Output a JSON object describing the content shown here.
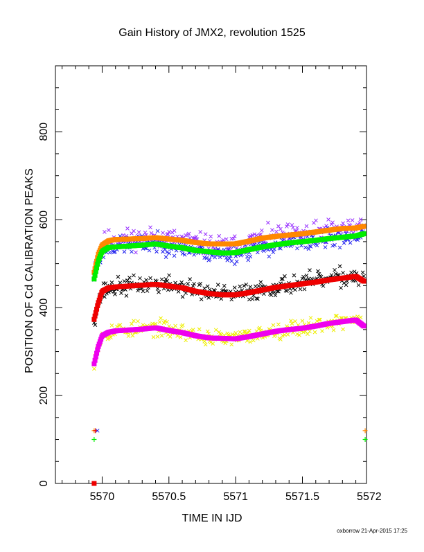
{
  "chart_data": {
    "type": "scatter",
    "title": "Gain History of JMX2, revolution 1525",
    "xlabel": "TIME IN IJD",
    "ylabel": "POSITION OF Cd CALIBRATION PEAKS",
    "footer": "oxborrow 21-Apr-2015 17:25",
    "xlim": [
      5569.65,
      5571.98
    ],
    "ylim": [
      0,
      950
    ],
    "xticks": [
      {
        "value": 5570,
        "label": "5570"
      },
      {
        "value": 5570.5,
        "label": "5570.5"
      },
      {
        "value": 5571,
        "label": "5571"
      },
      {
        "value": 5571.5,
        "label": "5571.5"
      },
      {
        "value": 5572,
        "label": "5572"
      }
    ],
    "yticks": [
      {
        "value": 0,
        "label": "0"
      },
      {
        "value": 200,
        "label": "200"
      },
      {
        "value": 400,
        "label": "400"
      },
      {
        "value": 600,
        "label": "600"
      },
      {
        "value": 800,
        "label": "800"
      }
    ],
    "grid": false,
    "legend": "none",
    "series": [
      {
        "color": "#9933ff",
        "marker": "x",
        "noise": 18,
        "seed": 11,
        "x": [
          5569.94,
          5569.97,
          5570.0,
          5570.05,
          5570.1,
          5570.2,
          5570.3,
          5570.4,
          5570.5,
          5570.6,
          5570.7,
          5570.8,
          5570.9,
          5571.0,
          5571.1,
          5571.2,
          5571.3,
          5571.4,
          5571.5,
          5571.6,
          5571.7,
          5571.8,
          5571.9,
          5571.96
        ],
        "y": [
          490,
          520,
          545,
          555,
          556,
          557,
          558,
          560,
          557,
          554,
          548,
          543,
          540,
          542,
          550,
          558,
          562,
          565,
          568,
          572,
          576,
          580,
          583,
          588
        ]
      },
      {
        "color": "#2222ee",
        "marker": "x",
        "noise": 16,
        "seed": 23,
        "x": [
          5569.94,
          5569.97,
          5570.0,
          5570.05,
          5570.1,
          5570.2,
          5570.3,
          5570.4,
          5570.5,
          5570.6,
          5570.7,
          5570.8,
          5570.9,
          5571.0,
          5571.1,
          5571.2,
          5571.3,
          5571.4,
          5571.5,
          5571.6,
          5571.7,
          5571.8,
          5571.9,
          5571.96
        ],
        "y": [
          470,
          505,
          530,
          538,
          540,
          542,
          544,
          546,
          541,
          536,
          530,
          525,
          520,
          522,
          530,
          537,
          542,
          546,
          549,
          552,
          556,
          559,
          562,
          566
        ]
      },
      {
        "color": "#ff8800",
        "marker": "square",
        "x": [
          5569.94,
          5569.97,
          5570.0,
          5570.05,
          5570.1,
          5570.2,
          5570.3,
          5570.4,
          5570.5,
          5570.6,
          5570.7,
          5570.8,
          5570.9,
          5571.0,
          5571.1,
          5571.2,
          5571.3,
          5571.4,
          5571.5,
          5571.6,
          5571.7,
          5571.8,
          5571.9,
          5571.96
        ],
        "y": [
          480,
          520,
          542,
          552,
          555,
          556,
          557,
          559,
          556,
          553,
          548,
          545,
          545,
          545,
          551,
          558,
          562,
          565,
          568,
          572,
          576,
          580,
          581,
          585
        ]
      },
      {
        "color": "#00ee00",
        "marker": "square",
        "x": [
          5569.94,
          5569.97,
          5570.0,
          5570.05,
          5570.1,
          5570.2,
          5570.3,
          5570.4,
          5570.5,
          5570.6,
          5570.7,
          5570.8,
          5570.9,
          5571.0,
          5571.1,
          5571.2,
          5571.3,
          5571.4,
          5571.5,
          5571.6,
          5571.7,
          5571.8,
          5571.9,
          5571.96
        ],
        "y": [
          465,
          505,
          528,
          537,
          538,
          540,
          542,
          545,
          540,
          536,
          530,
          527,
          524,
          525,
          532,
          538,
          543,
          547,
          550,
          553,
          557,
          560,
          563,
          568
        ]
      },
      {
        "color": "#000000",
        "marker": "x",
        "noise": 16,
        "seed": 37,
        "x": [
          5569.94,
          5569.97,
          5570.0,
          5570.05,
          5570.1,
          5570.2,
          5570.3,
          5570.4,
          5570.5,
          5570.6,
          5570.7,
          5570.8,
          5570.9,
          5571.0,
          5571.1,
          5571.2,
          5571.3,
          5571.4,
          5571.5,
          5571.6,
          5571.7,
          5571.8,
          5571.9,
          5571.96
        ],
        "y": [
          375,
          410,
          435,
          443,
          446,
          449,
          452,
          454,
          451,
          447,
          440,
          434,
          430,
          430,
          436,
          442,
          448,
          452,
          456,
          460,
          464,
          468,
          472,
          466
        ]
      },
      {
        "color": "#ee0000",
        "marker": "square",
        "x": [
          5569.94,
          5569.97,
          5570.0,
          5570.05,
          5570.1,
          5570.2,
          5570.3,
          5570.4,
          5570.5,
          5570.6,
          5570.7,
          5570.8,
          5570.9,
          5571.0,
          5571.1,
          5571.2,
          5571.3,
          5571.4,
          5571.5,
          5571.6,
          5571.7,
          5571.8,
          5571.9,
          5571.96
        ],
        "y": [
          373,
          410,
          437,
          445,
          447,
          449,
          451,
          453,
          449,
          445,
          437,
          432,
          429,
          429,
          434,
          440,
          446,
          450,
          454,
          458,
          463,
          467,
          471,
          460
        ]
      },
      {
        "color": "#eeee00",
        "marker": "x",
        "noise": 14,
        "seed": 53,
        "x": [
          5569.94,
          5569.97,
          5570.0,
          5570.05,
          5570.1,
          5570.2,
          5570.3,
          5570.4,
          5570.5,
          5570.6,
          5570.7,
          5570.8,
          5570.9,
          5571.0,
          5571.1,
          5571.2,
          5571.3,
          5571.4,
          5571.5,
          5571.6,
          5571.7,
          5571.8,
          5571.9,
          5571.96
        ],
        "y": [
          280,
          315,
          338,
          346,
          348,
          350,
          352,
          355,
          350,
          345,
          338,
          332,
          330,
          330,
          336,
          342,
          348,
          352,
          355,
          360,
          365,
          370,
          374,
          362
        ]
      },
      {
        "color": "#ee00ee",
        "marker": "square",
        "x": [
          5569.94,
          5569.97,
          5570.0,
          5570.05,
          5570.1,
          5570.2,
          5570.3,
          5570.4,
          5570.5,
          5570.6,
          5570.7,
          5570.8,
          5570.9,
          5571.0,
          5571.1,
          5571.2,
          5571.3,
          5571.4,
          5571.5,
          5571.6,
          5571.7,
          5571.8,
          5571.9,
          5571.96
        ],
        "y": [
          272,
          310,
          336,
          344,
          347,
          349,
          351,
          354,
          348,
          343,
          336,
          331,
          330,
          329,
          334,
          340,
          346,
          350,
          353,
          358,
          364,
          368,
          372,
          358
        ]
      }
    ],
    "extra_points": [
      {
        "x": 5569.94,
        "y": 120,
        "color": "#ff8800",
        "marker": "plus"
      },
      {
        "x": 5569.95,
        "y": 120,
        "color": "#ee0000",
        "marker": "plus"
      },
      {
        "x": 5569.965,
        "y": 120,
        "color": "#2222ee",
        "marker": "x"
      },
      {
        "x": 5569.94,
        "y": 100,
        "color": "#00ee00",
        "marker": "plus"
      },
      {
        "x": 5569.94,
        "y": 0,
        "color": "#ee0000",
        "marker": "square"
      },
      {
        "x": 5571.97,
        "y": 120,
        "color": "#ff8800",
        "marker": "plus"
      },
      {
        "x": 5571.97,
        "y": 100,
        "color": "#00ee00",
        "marker": "plus"
      }
    ]
  }
}
